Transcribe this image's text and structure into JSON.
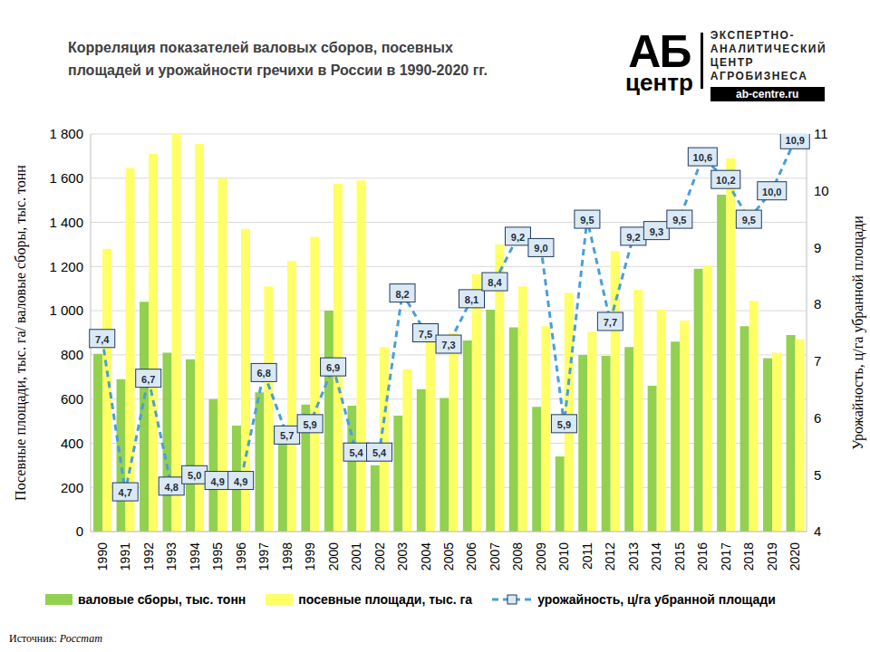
{
  "chart_data": {
    "type": "bar",
    "title": "Корреляция показателей валовых сборов, посевных\nплощадей и урожайности гречихи в России в 1990-2020 гг.",
    "ylabel": "Посевные площади, тыс. га/ валовые сборы, тыс. тонн",
    "y2label": "Урожайность, ц/га убранной площади",
    "logo": {
      "big": "АБ",
      "small": "центр",
      "lines": [
        "ЭКСПЕРТНО-",
        "АНАЛИТИЧЕСКИЙ",
        "ЦЕНТР",
        "АГРОБИЗНЕСА"
      ],
      "url": "ab-centre.ru"
    },
    "source": {
      "label": "Источник:",
      "name": "Росстат"
    },
    "categories": [
      "1990",
      "1991",
      "1992",
      "1993",
      "1994",
      "1995",
      "1996",
      "1997",
      "1998",
      "1999",
      "2000",
      "2001",
      "2002",
      "2003",
      "2004",
      "2005",
      "2006",
      "2007",
      "2008",
      "2009",
      "2010",
      "2011",
      "2012",
      "2013",
      "2014",
      "2015",
      "2016",
      "2017",
      "2018",
      "2019",
      "2020"
    ],
    "series": [
      {
        "name": "валовые сборы, тыс. тонн",
        "type": "bar",
        "color": "#92d050",
        "values": [
          805,
          690,
          1040,
          810,
          780,
          600,
          480,
          630,
          430,
          575,
          1000,
          570,
          300,
          525,
          645,
          605,
          865,
          1005,
          925,
          565,
          340,
          800,
          795,
          835,
          660,
          860,
          1190,
          1525,
          930,
          785,
          890
        ]
      },
      {
        "name": "посевные площади, тыс. га",
        "type": "bar",
        "color": "#ffff66",
        "values": [
          1280,
          1645,
          1710,
          1800,
          1755,
          1600,
          1370,
          1110,
          1225,
          1335,
          1575,
          1590,
          835,
          735,
          880,
          900,
          1165,
          1300,
          1110,
          930,
          1080,
          905,
          1270,
          1095,
          1005,
          955,
          1205,
          1690,
          1045,
          810,
          870
        ]
      },
      {
        "name": "урожайность, ц/га убранной площади",
        "type": "line",
        "axis": "y2",
        "color": "#4a9fd8",
        "marker": "square",
        "line_style": "dashed",
        "data_labels": true,
        "values": [
          7.4,
          4.7,
          6.7,
          4.8,
          5.0,
          4.9,
          4.9,
          6.8,
          5.7,
          5.9,
          6.9,
          5.4,
          5.4,
          8.2,
          7.5,
          7.3,
          8.1,
          8.4,
          9.2,
          9.0,
          5.9,
          9.5,
          7.7,
          9.2,
          9.3,
          9.5,
          10.6,
          10.2,
          9.5,
          10.0,
          10.9
        ],
        "value_labels": [
          "7,4",
          "4,7",
          "6,7",
          "4,8",
          "5,0",
          "4,9",
          "4,9",
          "6,8",
          "5,7",
          "5,9",
          "6,9",
          "5,4",
          "5,4",
          "8,2",
          "7,5",
          "7,3",
          "8,1",
          "8,4",
          "9,2",
          "9,0",
          "5,9",
          "9,5",
          "7,7",
          "9,2",
          "9,3",
          "9,5",
          "10,6",
          "10,2",
          "9,5",
          "10,0",
          "10,9"
        ]
      }
    ],
    "ylim": [
      0,
      1800
    ],
    "yticks": [
      0,
      200,
      400,
      600,
      800,
      {
        "value": 1000,
        "label": "1 000"
      },
      {
        "value": 1200,
        "label": "1 200"
      },
      {
        "value": 1400,
        "label": "1 400"
      },
      {
        "value": 1600,
        "label": "1 600"
      },
      {
        "value": 1800,
        "label": "1 800"
      }
    ],
    "y2lim": [
      4,
      11
    ],
    "y2ticks": [
      4,
      5,
      6,
      7,
      8,
      9,
      10,
      11
    ],
    "grid": true
  }
}
